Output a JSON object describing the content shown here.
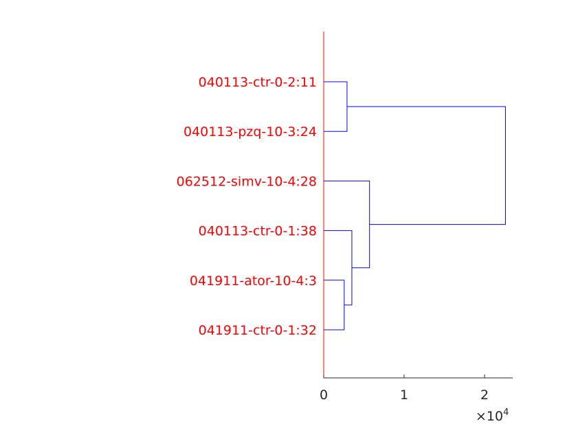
{
  "chart_data": {
    "type": "dendrogram",
    "orientation": "horizontal",
    "xlim": [
      0,
      23500
    ],
    "xticks": [
      0,
      10000,
      20000
    ],
    "tick_labels": [
      "0",
      "1",
      "2"
    ],
    "x_multiplier": {
      "prefix": "×10",
      "exponent": "4"
    },
    "leaves": [
      "040113-ctr-0-2:11",
      "040113-pzq-10-3:24",
      "062512-simv-10-4:28",
      "040113-ctr-0-1:38",
      "041911-ator-10-4:3",
      "041911-ctr-0-1:32"
    ],
    "merges": [
      {
        "left": "leaf:0",
        "right": "leaf:1",
        "height": 2900
      },
      {
        "left": "leaf:4",
        "right": "leaf:5",
        "height": 2550
      },
      {
        "left": "leaf:3",
        "right": "node:1",
        "height": 3500
      },
      {
        "left": "leaf:2",
        "right": "node:2",
        "height": 5700
      },
      {
        "left": "node:0",
        "right": "node:3",
        "height": 22600
      }
    ],
    "colors": {
      "links": "#0000ff",
      "labels": "#ff0000",
      "y_axis": "#ff0000",
      "x_axis": "#262626"
    }
  }
}
